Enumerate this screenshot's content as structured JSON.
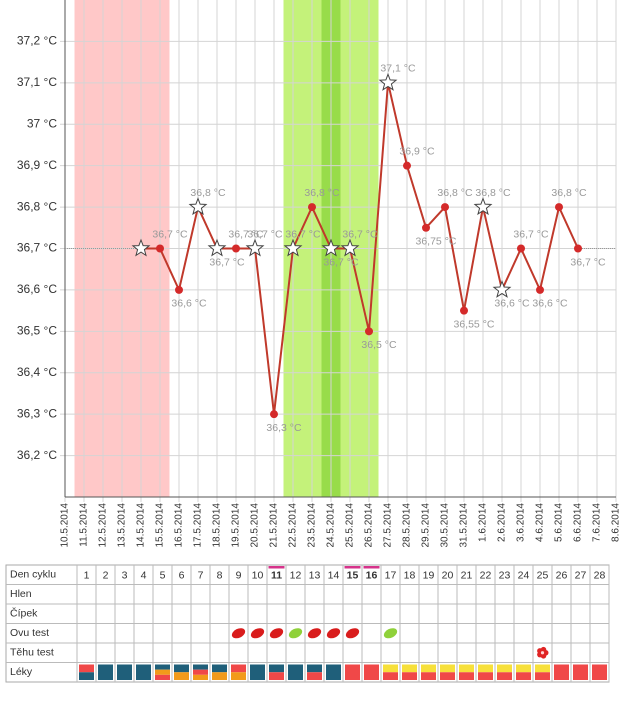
{
  "chart_data": {
    "type": "line",
    "color": "#c0392b",
    "categories": [
      "10.5.2014",
      "11.5.2014",
      "12.5.2014",
      "13.5.2014",
      "14.5.2014",
      "15.5.2014",
      "16.5.2014",
      "17.5.2014",
      "18.5.2014",
      "19.5.2014",
      "20.5.2014",
      "21.5.2014",
      "22.5.2014",
      "23.5.2014",
      "24.5.2014",
      "25.5.2014",
      "26.5.2014",
      "27.5.2014",
      "28.5.2014",
      "29.5.2014",
      "30.5.2014",
      "31.5.2014",
      "1.6.2014",
      "2.6.2014",
      "3.6.2014",
      "4.6.2014",
      "5.6.2014",
      "6.6.2014",
      "7.6.2014",
      "8.6.2014"
    ],
    "values": [
      null,
      null,
      null,
      null,
      36.7,
      36.7,
      36.6,
      36.8,
      36.7,
      36.7,
      36.7,
      36.3,
      36.7,
      36.8,
      36.7,
      36.7,
      36.5,
      37.1,
      36.9,
      36.75,
      36.8,
      36.55,
      36.8,
      36.6,
      36.7,
      36.6,
      36.8,
      36.7,
      null,
      null
    ],
    "value_labels": [
      null,
      null,
      null,
      null,
      null,
      "36,7 °C",
      "36,6 °C",
      "36,8 °C",
      "36,7 °C",
      "36,7 °C",
      "36,7 °C",
      "36,3 °C",
      "36,7 °C",
      "36,8 °C",
      "36,7 °C",
      "36,7 °C",
      "36,5 °C",
      "37,1 °C",
      "36,9 °C",
      "36,75 °C",
      "36,8 °C",
      "36,55 °C",
      "36,8 °C",
      "36,6 °C",
      "36,7 °C",
      "36,6 °C",
      "36,8 °C",
      "36,7 °C",
      null,
      null
    ],
    "stars": [
      false,
      false,
      false,
      false,
      true,
      false,
      false,
      true,
      true,
      false,
      true,
      false,
      true,
      false,
      true,
      true,
      false,
      true,
      false,
      false,
      false,
      false,
      true,
      true,
      false,
      false,
      false,
      false,
      false,
      false
    ],
    "ylim": [
      36.1,
      37.3
    ],
    "yticks": [
      {
        "value": 36.2,
        "label": "36,2 °C"
      },
      {
        "value": 36.3,
        "label": "36,3 °C"
      },
      {
        "value": 36.4,
        "label": "36,4 °C"
      },
      {
        "value": 36.5,
        "label": "36,5 °C"
      },
      {
        "value": 36.6,
        "label": "36,6 °C"
      },
      {
        "value": 36.7,
        "label": "36,7 °C"
      },
      {
        "value": 36.8,
        "label": "36,8 °C"
      },
      {
        "value": 36.9,
        "label": "36,9 °C"
      },
      {
        "value": 37,
        "label": "37 °C"
      },
      {
        "value": 37.1,
        "label": "37,1 °C"
      },
      {
        "value": 37.2,
        "label": "37,2 °C"
      }
    ],
    "grid": true,
    "bands": [
      {
        "from": "11.5.2014",
        "to": "15.5.2014",
        "color": "#ffc8c8"
      },
      {
        "from": "22.5.2014",
        "to": "26.5.2014",
        "color": "#c4f27a"
      },
      {
        "from": "24.5.2014",
        "to": "24.5.2014",
        "color": "#98dc4a"
      }
    ]
  },
  "table": {
    "row_labels": [
      "Den cyklu",
      "Hlen",
      "Čípek",
      "Ovu test",
      "Těhu test",
      "Léky"
    ],
    "days": [
      1,
      2,
      3,
      4,
      5,
      6,
      7,
      8,
      9,
      10,
      11,
      12,
      13,
      14,
      15,
      16,
      17,
      18,
      19,
      20,
      21,
      22,
      23,
      24,
      25,
      26,
      27,
      28
    ]
  }
}
